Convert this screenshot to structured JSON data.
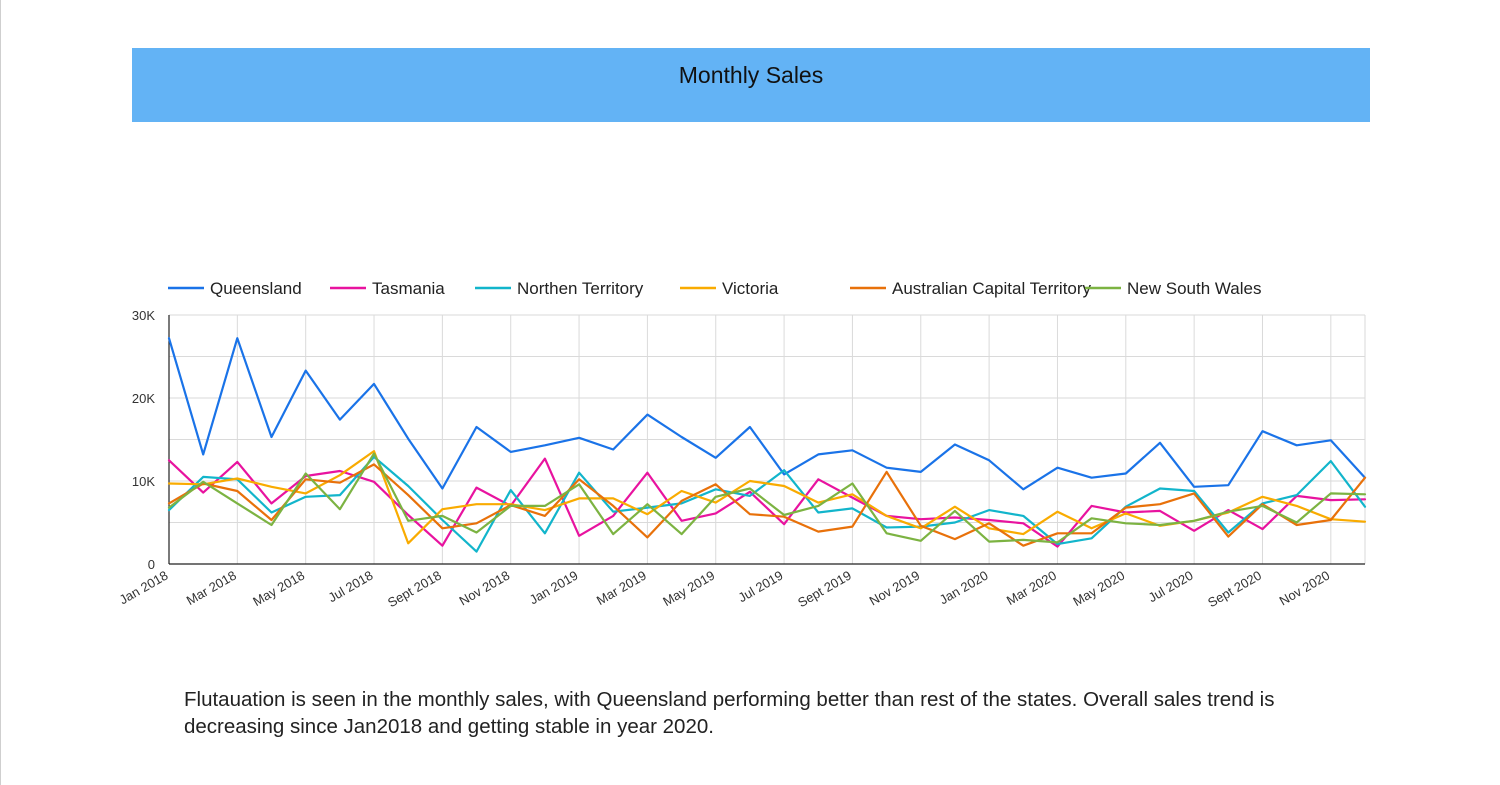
{
  "header": {
    "title": "Monthly Sales"
  },
  "caption": "Flutauation is seen in the monthly sales, with Queensland performing better than rest of the states. Overall sales trend is decreasing since Jan2018 and getting stable in year 2020.",
  "chart_data": {
    "type": "line",
    "title": "",
    "xlabel": "",
    "ylabel": "",
    "ylim": [
      0,
      30000
    ],
    "y_ticks": [
      {
        "value": 0,
        "label": "0"
      },
      {
        "value": 10000,
        "label": "10K"
      },
      {
        "value": 20000,
        "label": "20K"
      },
      {
        "value": 30000,
        "label": "30K"
      }
    ],
    "grid": true,
    "legend_position": "top-left",
    "x": [
      "Jan 2018",
      "Feb 2018",
      "Mar 2018",
      "Apr 2018",
      "May 2018",
      "Jun 2018",
      "Jul 2018",
      "Aug 2018",
      "Sept 2018",
      "Oct 2018",
      "Nov 2018",
      "Dec 2018",
      "Jan 2019",
      "Feb 2019",
      "Mar 2019",
      "Apr 2019",
      "May 2019",
      "Jun 2019",
      "Jul 2019",
      "Aug 2019",
      "Sept 2019",
      "Oct 2019",
      "Nov 2019",
      "Dec 2019",
      "Jan 2020",
      "Feb 2020",
      "Mar 2020",
      "Apr 2020",
      "May 2020",
      "Jun 2020",
      "Jul 2020",
      "Aug 2020",
      "Sept 2020",
      "Oct 2020",
      "Nov 2020",
      "Dec 2020"
    ],
    "x_tick_labels": [
      "Jan 2018",
      "Mar 2018",
      "May 2018",
      "Jul 2018",
      "Sept 2018",
      "Nov 2018",
      "Jan 2019",
      "Mar 2019",
      "May 2019",
      "Jul 2019",
      "Sept 2019",
      "Nov 2019",
      "Jan 2020",
      "Mar 2020",
      "May 2020",
      "Jul 2020",
      "Sept 2020",
      "Nov 2020"
    ],
    "series": [
      {
        "name": "Queensland",
        "color": "#1a73e8",
        "values": [
          27200,
          13200,
          27200,
          15300,
          23300,
          17400,
          21700,
          15100,
          9100,
          16500,
          13500,
          14300,
          15200,
          13800,
          18000,
          15300,
          12800,
          16500,
          10800,
          13200,
          13700,
          11600,
          11100,
          14400,
          12500,
          9000,
          11600,
          10400,
          10900,
          14600,
          9300,
          9500,
          16000,
          14300,
          14900,
          10400
        ]
      },
      {
        "name": "Tasmania",
        "color": "#e8139f",
        "values": [
          12500,
          8600,
          12300,
          7300,
          10600,
          11200,
          9900,
          5900,
          2200,
          9200,
          7000,
          12700,
          3400,
          5800,
          11000,
          5200,
          6100,
          8700,
          4800,
          10200,
          8000,
          5800,
          5400,
          5600,
          5300,
          4900,
          2100,
          7000,
          6200,
          6400,
          4000,
          6500,
          4200,
          8200,
          7700,
          7800
        ]
      },
      {
        "name": "Northen Territory",
        "color": "#12b5cb",
        "values": [
          6500,
          10500,
          10200,
          6200,
          8100,
          8300,
          12900,
          9400,
          5300,
          1500,
          8900,
          3700,
          11000,
          6300,
          6800,
          7300,
          9000,
          8200,
          11300,
          6200,
          6700,
          4400,
          4500,
          5000,
          6500,
          5800,
          2400,
          3100,
          6900,
          9100,
          8800,
          3800,
          7300,
          8300,
          12400,
          6900
        ]
      },
      {
        "name": "Victoria",
        "color": "#f9ab00",
        "values": [
          9700,
          9600,
          10300,
          9300,
          8500,
          10700,
          13600,
          2500,
          6600,
          7200,
          7200,
          6500,
          7900,
          7900,
          6000,
          8800,
          7400,
          10000,
          9400,
          7400,
          8400,
          5800,
          4300,
          6900,
          4300,
          3600,
          6300,
          4300,
          6100,
          4600,
          5200,
          6200,
          8100,
          7000,
          5400,
          5100
        ]
      },
      {
        "name": "Australian Capital Territory",
        "color": "#e8710a",
        "values": [
          7300,
          9700,
          8800,
          5300,
          10200,
          9800,
          12000,
          8300,
          4300,
          4900,
          7100,
          5800,
          10200,
          7000,
          3200,
          7600,
          9600,
          6000,
          5700,
          3900,
          4500,
          11100,
          4600,
          3000,
          4900,
          2200,
          3700,
          3700,
          6800,
          7200,
          8500,
          3300,
          7200,
          4700,
          5300,
          10400
        ]
      },
      {
        "name": "New South Wales",
        "color": "#7cb342",
        "values": [
          6800,
          9900,
          7300,
          4700,
          10900,
          6600,
          13300,
          5200,
          5800,
          3800,
          7000,
          7000,
          9600,
          3600,
          7200,
          3600,
          8100,
          9100,
          5900,
          7000,
          9700,
          3700,
          2800,
          6400,
          2700,
          2900,
          2600,
          5500,
          4900,
          4700,
          5200,
          6300,
          7000,
          5000,
          8500,
          8400
        ]
      }
    ]
  }
}
